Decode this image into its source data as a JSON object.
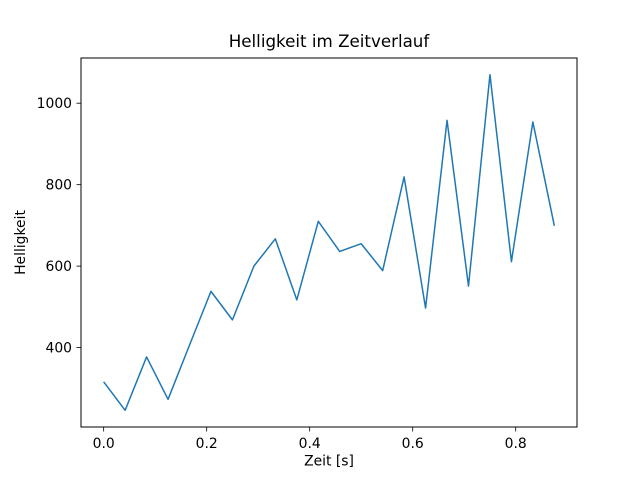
{
  "figure": {
    "background_color": "#ffffff",
    "spine_color": "#000000",
    "text_color": "#000000"
  },
  "chart_data": {
    "type": "line",
    "title": "Helligkeit im Zeitverlauf",
    "xlabel": "Zeit [s]",
    "ylabel": "Helligkeit",
    "line_color": "#1f77b4",
    "grid": false,
    "legend": null,
    "markers": false,
    "xlim": [
      -0.044,
      0.919
    ],
    "ylim": [
      205,
      1111
    ],
    "xticks": [
      0.0,
      0.2,
      0.4,
      0.6,
      0.8
    ],
    "xtick_labels": [
      "0.0",
      "0.2",
      "0.4",
      "0.6",
      "0.8"
    ],
    "yticks": [
      400,
      600,
      800,
      1000
    ],
    "ytick_labels": [
      "400",
      "600",
      "800",
      "1000"
    ],
    "x": [
      0.0,
      0.0417,
      0.0833,
      0.125,
      0.1667,
      0.2083,
      0.25,
      0.2917,
      0.3333,
      0.375,
      0.4167,
      0.4583,
      0.5,
      0.5417,
      0.5833,
      0.625,
      0.6667,
      0.7083,
      0.75,
      0.7917,
      0.8333,
      0.875
    ],
    "y": [
      316,
      246,
      377,
      273,
      406,
      538,
      468,
      600,
      667,
      517,
      710,
      636,
      655,
      589,
      819,
      497,
      958,
      551,
      1070,
      611,
      954,
      699
    ]
  }
}
